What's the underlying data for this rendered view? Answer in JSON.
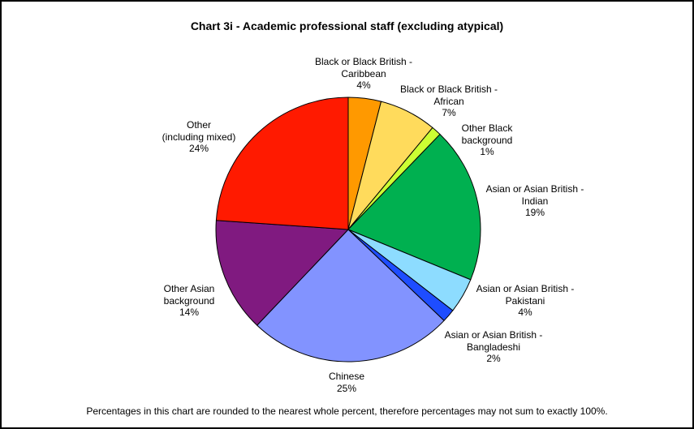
{
  "chart_data": {
    "type": "pie",
    "title": "Chart 3i - Academic professional staff (excluding atypical)",
    "footnote": "Percentages in this chart are rounded to the nearest whole percent, therefore percentages may not sum to exactly 100%.",
    "slices": [
      {
        "label_lines": [
          "Black or Black British -",
          "Caribbean"
        ],
        "percent_label": "4%",
        "value": 4,
        "color": "#ff9900"
      },
      {
        "label_lines": [
          "Black or Black British -",
          "African"
        ],
        "percent_label": "7%",
        "value": 7,
        "color": "#ffdb5c"
      },
      {
        "label_lines": [
          "Other Black",
          "background"
        ],
        "percent_label": "1%",
        "value": 1.2,
        "color": "#ccff33"
      },
      {
        "label_lines": [
          "Asian or Asian British -",
          "Indian"
        ],
        "percent_label": "19%",
        "value": 19,
        "color": "#00b050"
      },
      {
        "label_lines": [
          "Asian or Asian British -",
          "Pakistani"
        ],
        "percent_label": "4%",
        "value": 4.3,
        "color": "#8ddcff"
      },
      {
        "label_lines": [
          "Asian or Asian British -",
          "Bangladeshi"
        ],
        "percent_label": "2%",
        "value": 1.6,
        "color": "#1e4dff"
      },
      {
        "label_lines": [
          "Chinese"
        ],
        "percent_label": "25%",
        "value": 25,
        "color": "#8293ff"
      },
      {
        "label_lines": [
          "Other Asian",
          "background"
        ],
        "percent_label": "14%",
        "value": 14,
        "color": "#801a80"
      },
      {
        "label_lines": [
          "Other",
          "(including mixed)"
        ],
        "percent_label": "24%",
        "value": 23.9,
        "color": "#ff1a00"
      }
    ]
  }
}
